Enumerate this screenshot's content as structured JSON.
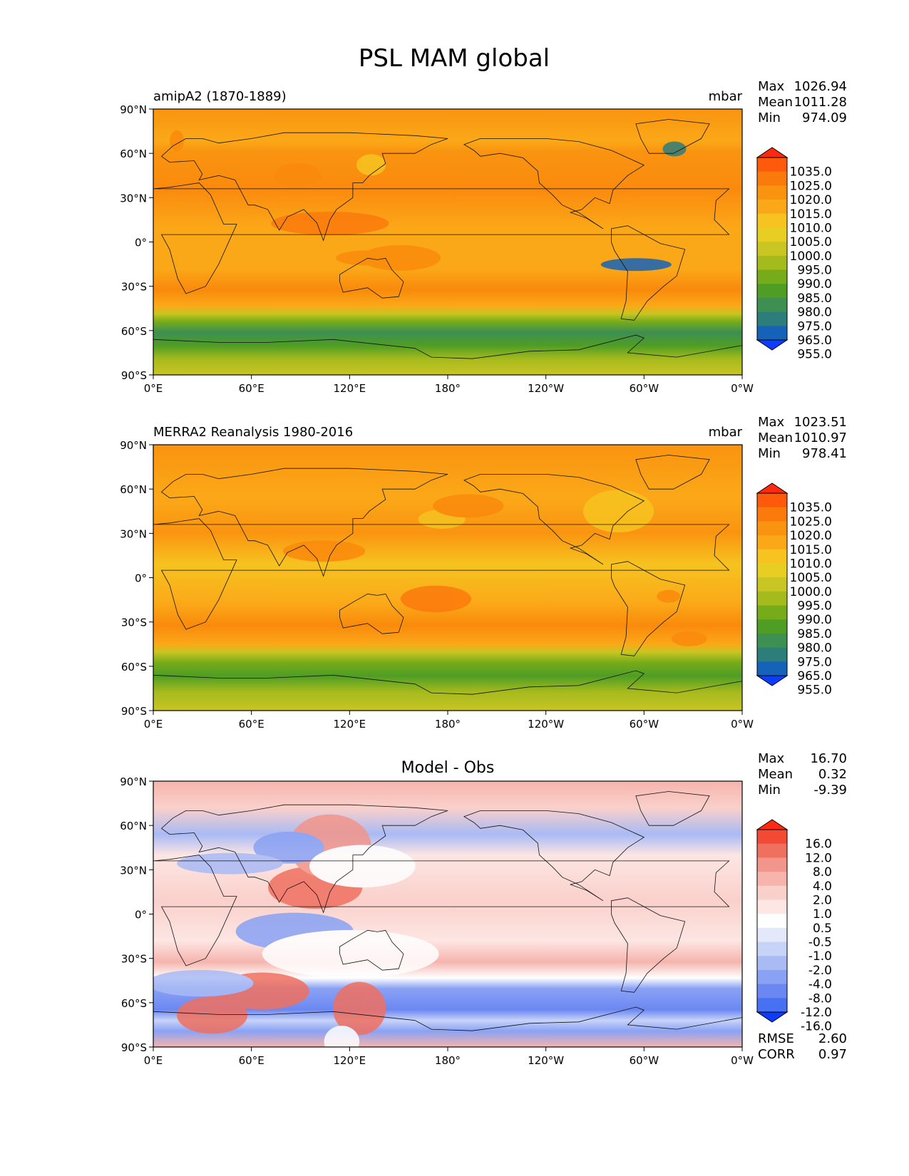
{
  "figure_title": "PSL MAM global",
  "lat_ticks": [
    "90°N",
    "60°N",
    "30°N",
    "0°",
    "30°S",
    "60°S",
    "90°S"
  ],
  "lon_ticks": [
    "0°E",
    "60°E",
    "120°E",
    "180°",
    "120°W",
    "60°W",
    "0°W"
  ],
  "panels": [
    {
      "id": "model",
      "left_title": "amipA2 (1870-1889)",
      "center_title": "",
      "units": "mbar",
      "stats": [
        {
          "label": "Max",
          "value": "1026.94"
        },
        {
          "label": "Mean",
          "value": "1011.28"
        },
        {
          "label": "Min",
          "value": "974.09"
        }
      ],
      "colormap": "abs"
    },
    {
      "id": "obs",
      "left_title": "MERRA2 Reanalysis 1980-2016",
      "center_title": "",
      "units": "mbar",
      "stats": [
        {
          "label": "Max",
          "value": "1023.51"
        },
        {
          "label": "Mean",
          "value": "1010.97"
        },
        {
          "label": "Min",
          "value": "978.41"
        }
      ],
      "colormap": "abs"
    },
    {
      "id": "diff",
      "left_title": "",
      "center_title": "Model - Obs",
      "units": "",
      "stats": [
        {
          "label": "Max",
          "value": "16.70"
        },
        {
          "label": "Mean",
          "value": "0.32"
        },
        {
          "label": "Min",
          "value": "-9.39"
        }
      ],
      "extra_stats": [
        {
          "label": "RMSE",
          "value": "2.60"
        },
        {
          "label": "CORR",
          "value": "0.97"
        }
      ],
      "colormap": "diff"
    }
  ],
  "colorbars": {
    "abs": {
      "labels": [
        "1035.0",
        "1025.0",
        "1020.0",
        "1015.0",
        "1010.0",
        "1005.0",
        "1000.0",
        "995.0",
        "990.0",
        "985.0",
        "980.0",
        "975.0",
        "965.0",
        "955.0"
      ],
      "colors": [
        "#ff2a10",
        "#fe5a0b",
        "#fb7a0c",
        "#fa9410",
        "#fba818",
        "#f6c320",
        "#e8cd22",
        "#c9c522",
        "#a5ba1d",
        "#76ab19",
        "#4f9d25",
        "#3d8f52",
        "#2d7d7b",
        "#1463b8",
        "#0b3dff"
      ]
    },
    "diff": {
      "labels": [
        "16.0",
        "12.0",
        "8.0",
        "4.0",
        "2.0",
        "1.0",
        "0.5",
        "-0.5",
        "-1.0",
        "-2.0",
        "-4.0",
        "-8.0",
        "-12.0",
        "-16.0"
      ],
      "colors": [
        "#ff2a10",
        "#f24a35",
        "#f07060",
        "#f2958a",
        "#f6b4ad",
        "#fad0cb",
        "#fde6e3",
        "#ffffff",
        "#e3e8fb",
        "#c8d3f8",
        "#a9baf5",
        "#8aa2f4",
        "#6b88f2",
        "#4770f2",
        "#0b3dff"
      ]
    }
  }
}
